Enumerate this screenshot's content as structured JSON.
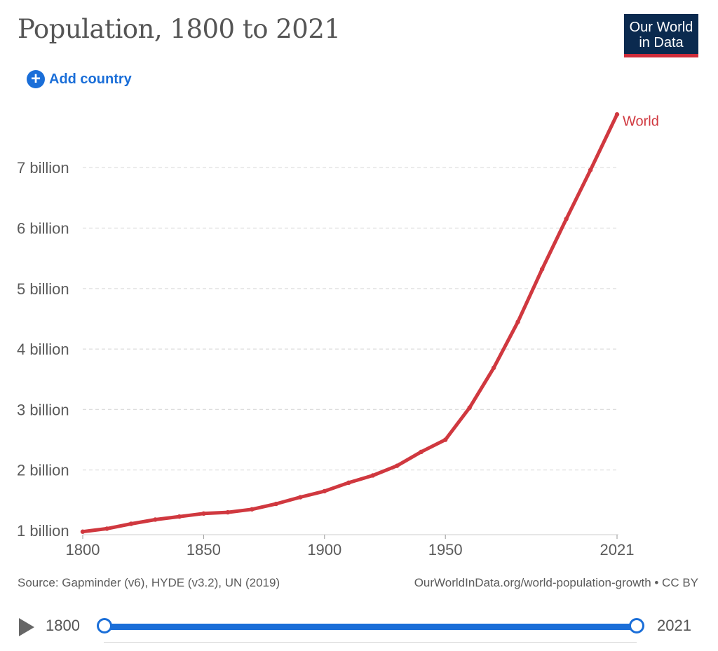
{
  "header": {
    "title": "Population, 1800 to 2021",
    "logo_line1": "Our World",
    "logo_line2": "in Data",
    "add_country_label": "Add country"
  },
  "chart_data": {
    "type": "line",
    "title": "Population, 1800 to 2021",
    "xlabel": "",
    "ylabel": "",
    "x_ticks": [
      "1800",
      "1850",
      "1900",
      "1950",
      "2021"
    ],
    "y_ticks": [
      "1 billion",
      "2 billion",
      "3 billion",
      "4 billion",
      "5 billion",
      "6 billion",
      "7 billion"
    ],
    "xlim": [
      1800,
      2021
    ],
    "ylim": [
      1,
      7.9
    ],
    "grid": true,
    "series": [
      {
        "name": "World",
        "color": "#d0383f",
        "x": [
          1800,
          1810,
          1820,
          1830,
          1840,
          1850,
          1860,
          1870,
          1880,
          1890,
          1900,
          1910,
          1920,
          1930,
          1940,
          1950,
          1960,
          1970,
          1980,
          1990,
          2000,
          2010,
          2021
        ],
        "values": [
          0.98,
          1.03,
          1.11,
          1.18,
          1.23,
          1.28,
          1.3,
          1.35,
          1.44,
          1.55,
          1.65,
          1.79,
          1.91,
          2.07,
          2.3,
          2.5,
          3.03,
          3.69,
          4.45,
          5.32,
          6.15,
          6.96,
          7.88
        ]
      }
    ]
  },
  "footer": {
    "source": "Source: Gapminder (v6), HYDE (v3.2), UN (2019)",
    "link": "OurWorldInData.org/world-population-growth • CC BY"
  },
  "timeline": {
    "start_label": "1800",
    "end_label": "2021"
  }
}
